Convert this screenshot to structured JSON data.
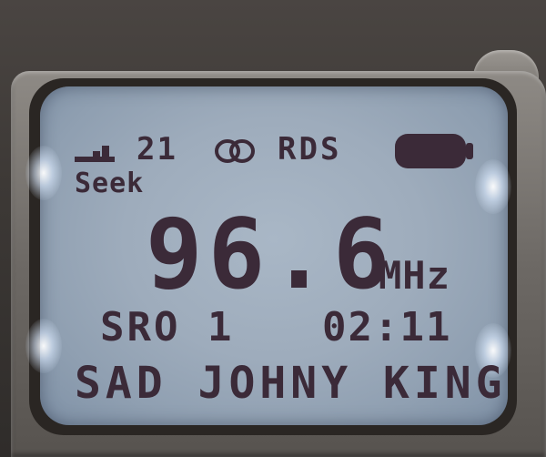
{
  "display": {
    "channel": "21",
    "rds_label": "RDS",
    "mode": "Seek",
    "frequency": "96.6",
    "unit": "MHz",
    "station_name": "SRO 1",
    "time": "02:11",
    "radio_text": "SAD JOHNY KING"
  },
  "icons": {
    "signal": "signal-strength-icon",
    "stereo": "stereo-icon",
    "battery": "battery-icon"
  },
  "colors": {
    "lcd_background": "#9eacbc",
    "segment": "#3b2a38",
    "backlight": "#e6f0ff"
  }
}
